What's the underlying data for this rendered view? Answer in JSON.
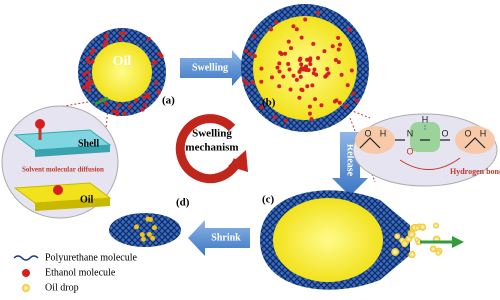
{
  "labels": {
    "a": "(a)",
    "b": "(b)",
    "c": "(c)",
    "d": "(d)"
  },
  "particle_a": {
    "core": "Oil"
  },
  "arrows": {
    "swelling": "Swelling",
    "release": "Release",
    "shrink": "Shrink"
  },
  "mechanism": [
    "Swelling",
    "mechanism"
  ],
  "inset_left": {
    "shell": "Shell",
    "diffusion": "Solvent molecular diffusion",
    "oil": "Oil"
  },
  "inset_right": {
    "atoms": [
      "O",
      "H",
      "N",
      "H",
      "O",
      "O",
      "O",
      "H"
    ],
    "hydrogen_bond": "Hydrogen bond"
  },
  "legend": [
    {
      "label": "Polyurethane molecule"
    },
    {
      "label": "Ethanol molecule"
    },
    {
      "label": "Oil drop"
    }
  ]
}
